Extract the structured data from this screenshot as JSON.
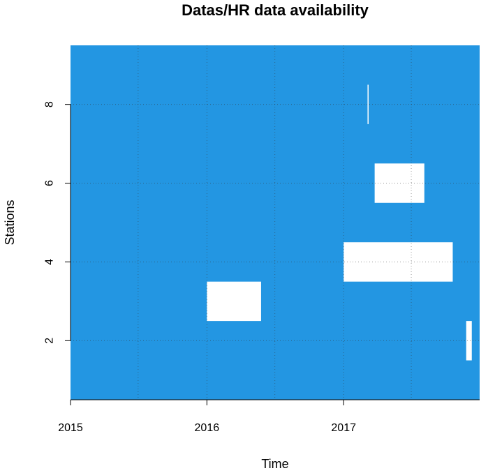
{
  "chart_data": {
    "type": "heatmap",
    "title": "Datas/HR data availability",
    "xlabel": "Time",
    "ylabel": "Stations",
    "x_ticks": [
      "2015",
      "2016",
      "2017"
    ],
    "y_ticks": [
      "2",
      "4",
      "6",
      "8"
    ],
    "xlim": [
      "2015-01-01",
      "2017-12-31"
    ],
    "ylim": [
      0.5,
      9.5
    ],
    "grid": true,
    "colors": {
      "available": "#2396e2",
      "missing": "#ffffff"
    },
    "stations": [
      1,
      2,
      3,
      4,
      5,
      6,
      7,
      8,
      9
    ],
    "missing_periods": [
      {
        "station": 2,
        "start": "2017-11-25",
        "end": "2017-12-10"
      },
      {
        "station": 3,
        "start": "2016-01-01",
        "end": "2016-05-25"
      },
      {
        "station": 4,
        "start": "2017-01-01",
        "end": "2017-10-20"
      },
      {
        "station": 6,
        "start": "2017-03-25",
        "end": "2017-08-05"
      },
      {
        "station": 8,
        "start": "2017-03-06",
        "end": "2017-03-08"
      }
    ]
  }
}
